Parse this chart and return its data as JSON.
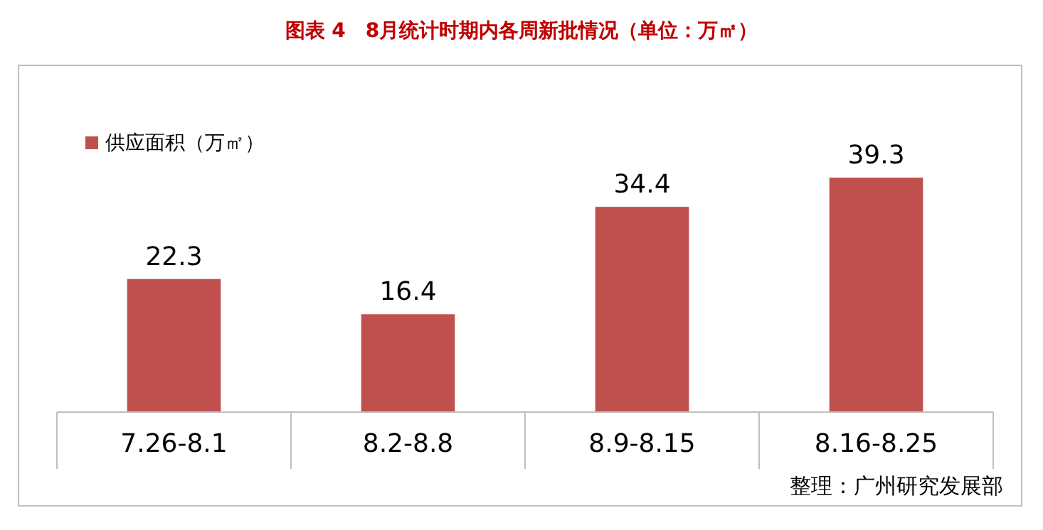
{
  "chart_data": {
    "type": "bar",
    "title": "图表 4　8月统计时期内各周新批情况（单位：万㎡）",
    "categories": [
      "7.26-8.1",
      "8.2-8.8",
      "8.9-8.15",
      "8.16-8.25"
    ],
    "series": [
      {
        "name": "供应面积（万㎡）",
        "color": "#c0504d",
        "values": [
          22.3,
          16.4,
          34.4,
          39.3
        ]
      }
    ],
    "data_labels": true,
    "legend": "top left",
    "annotations": [
      "整理：广州研究发展部"
    ]
  }
}
